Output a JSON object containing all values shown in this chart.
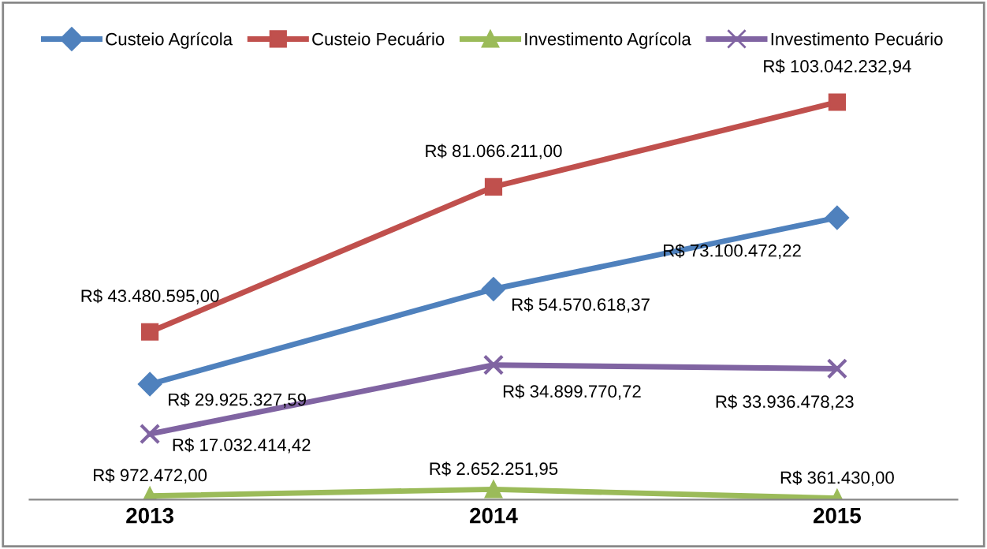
{
  "chart_data": {
    "type": "line",
    "categories": [
      "2013",
      "2014",
      "2015"
    ],
    "series": [
      {
        "name": "Custeio Agrícola",
        "color": "#4f81bd",
        "marker": "diamond",
        "values": [
          29925327.59,
          54570618.37,
          73100472.22
        ],
        "value_labels": [
          "R$ 29.925.327,59",
          "R$ 54.570.618,37",
          "R$ 73.100.472,22"
        ]
      },
      {
        "name": "Custeio Pecuário",
        "color": "#c0504d",
        "marker": "square",
        "values": [
          43480595.0,
          81066211.0,
          103042232.94
        ],
        "value_labels": [
          "R$ 43.480.595,00",
          "R$ 81.066.211,00",
          "R$ 103.042.232,94"
        ]
      },
      {
        "name": "Investimento Agrícola",
        "color": "#9bbb59",
        "marker": "triangle",
        "values": [
          972472.0,
          2652251.95,
          361430.0
        ],
        "value_labels": [
          "R$ 972.472,00",
          "R$ 2.652.251,95",
          "R$ 361.430,00"
        ]
      },
      {
        "name": "Investimento Pecuário",
        "color": "#8064a2",
        "marker": "cross",
        "values": [
          17032414.42,
          34899770.72,
          33936478.23
        ],
        "value_labels": [
          "R$ 17.032.414,42",
          "R$ 34.899.770,72",
          "R$ 33.936.478,23"
        ]
      }
    ],
    "tick_labels": "x",
    "grid": false,
    "legend": "top",
    "line_style": "solid"
  }
}
